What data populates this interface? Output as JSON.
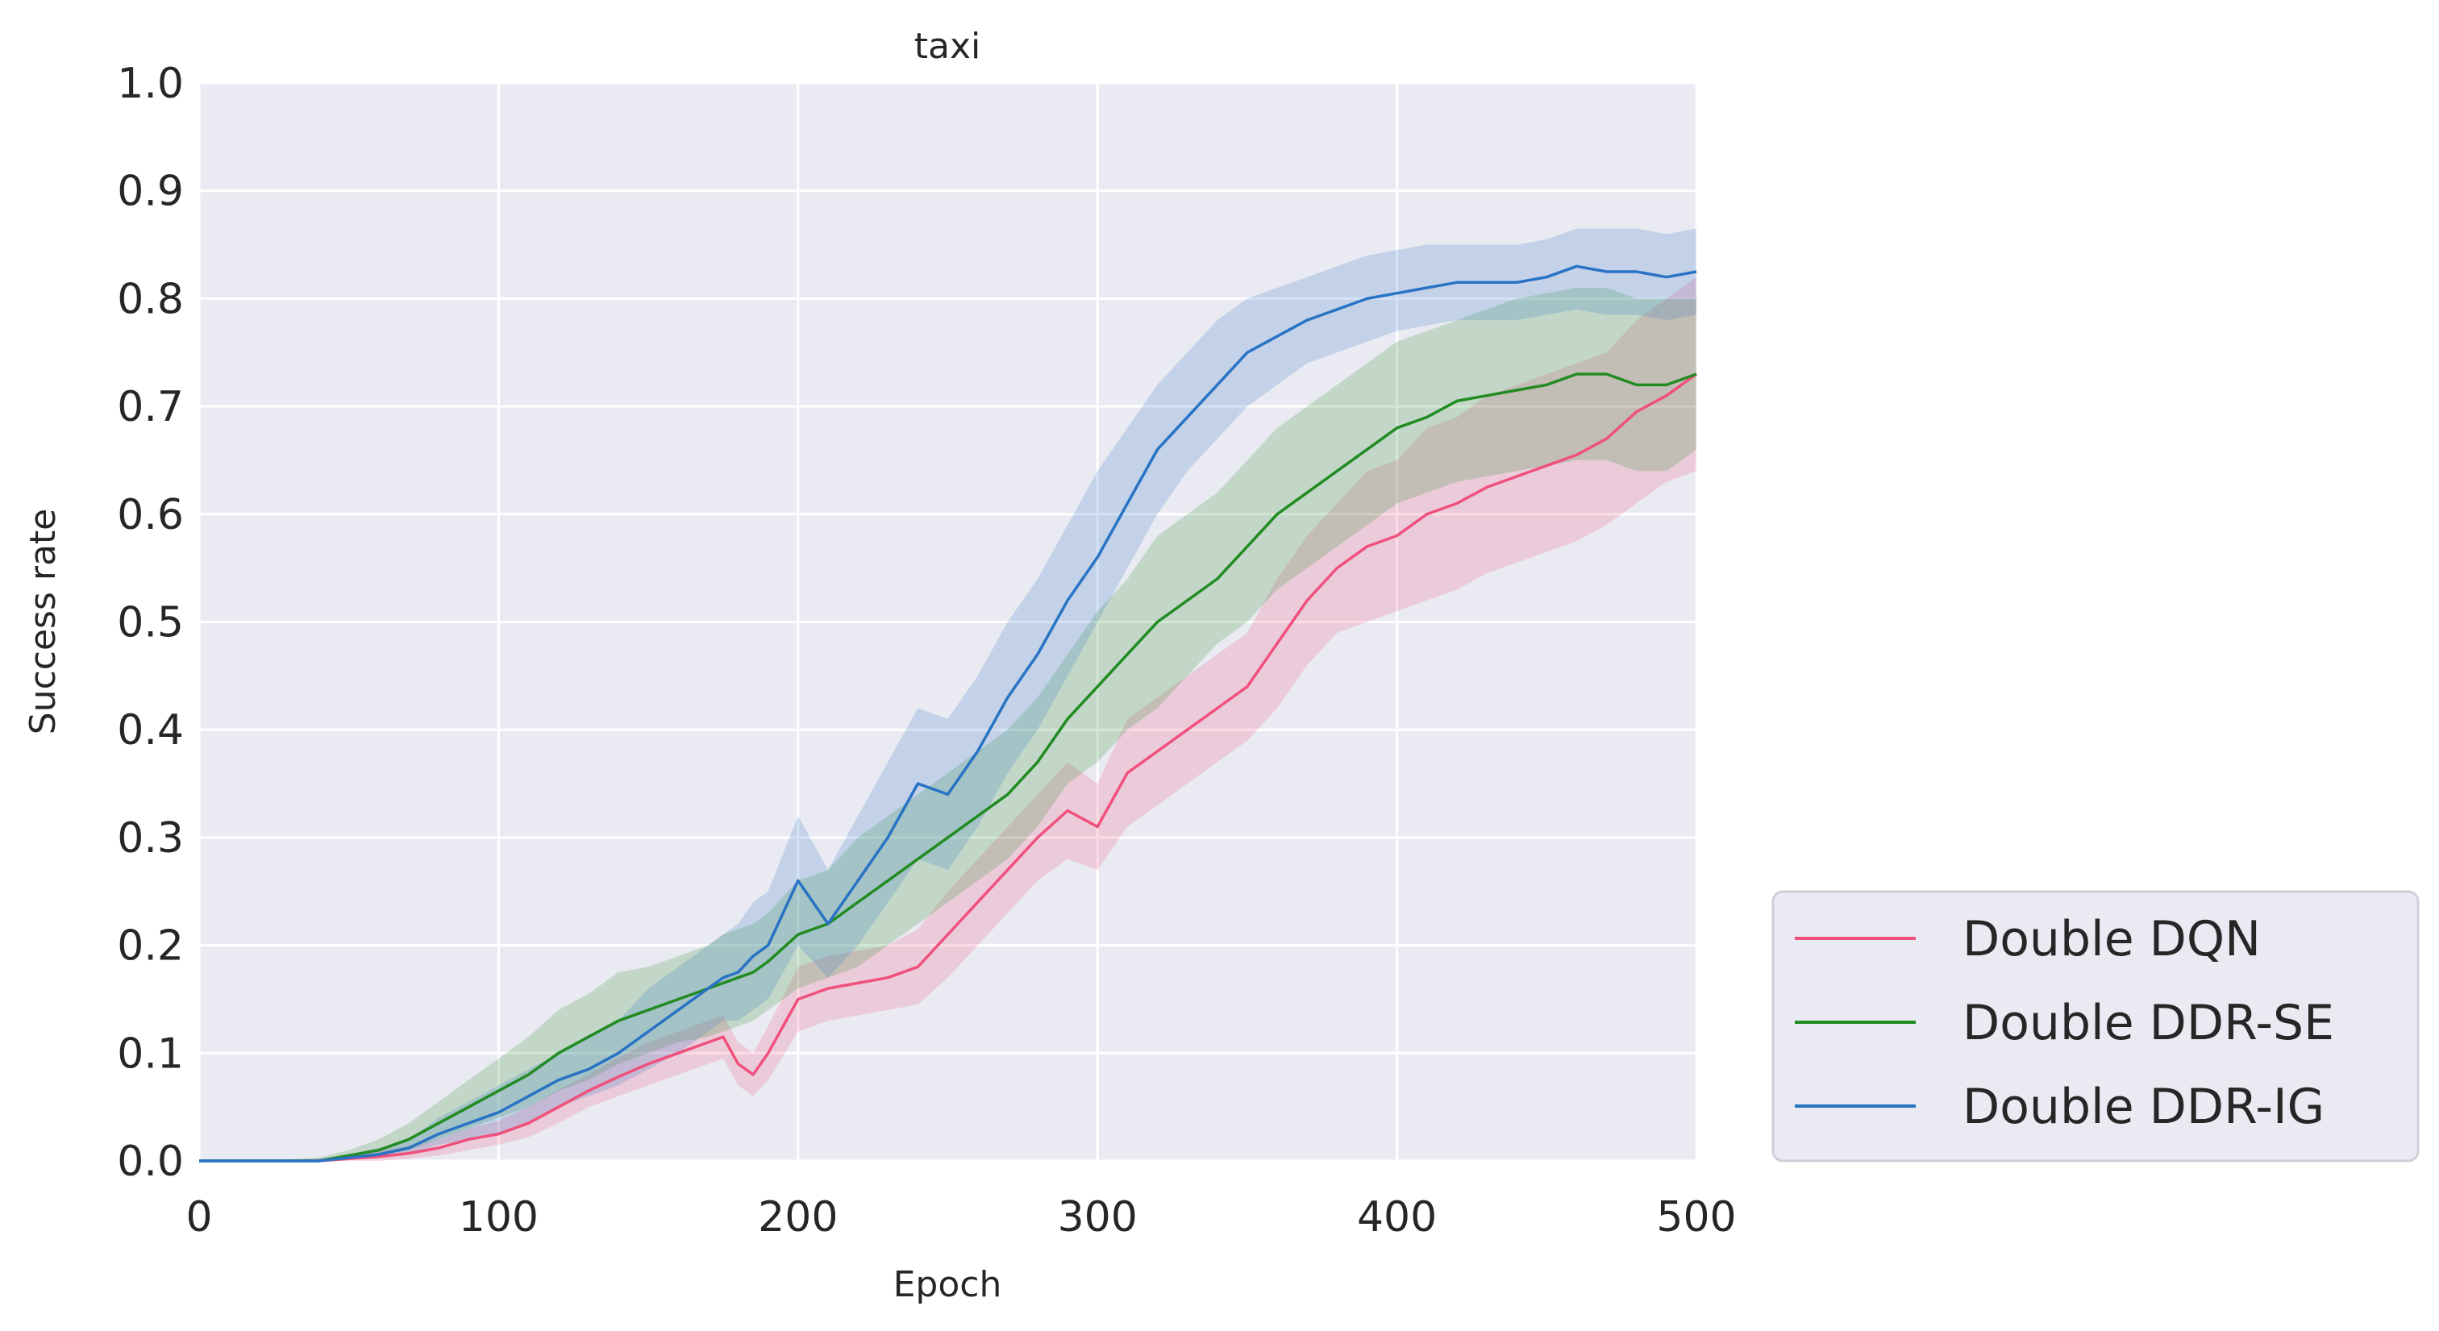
{
  "chart_data": {
    "type": "line",
    "title": "taxi",
    "xlabel": "Epoch",
    "ylabel": "Success rate",
    "xlim": [
      0,
      500
    ],
    "ylim": [
      0.0,
      1.0
    ],
    "xticks": [
      0,
      100,
      200,
      300,
      400,
      500
    ],
    "xtick_labels": [
      "0",
      "100",
      "200",
      "300",
      "400",
      "500"
    ],
    "yticks": [
      0.0,
      0.1,
      0.2,
      0.3,
      0.4,
      0.5,
      0.6,
      0.7,
      0.8,
      0.9,
      1.0
    ],
    "ytick_labels": [
      "0.0",
      "0.1",
      "0.2",
      "0.3",
      "0.4",
      "0.5",
      "0.6",
      "0.7",
      "0.8",
      "0.9",
      "1.0"
    ],
    "grid": true,
    "legend_position": "outside-lower-right",
    "x": [
      0,
      20,
      40,
      50,
      60,
      70,
      80,
      90,
      100,
      110,
      120,
      130,
      140,
      150,
      160,
      170,
      175,
      180,
      185,
      190,
      200,
      210,
      220,
      230,
      240,
      250,
      260,
      270,
      280,
      290,
      300,
      310,
      320,
      330,
      340,
      350,
      360,
      370,
      380,
      390,
      400,
      410,
      420,
      430,
      440,
      450,
      460,
      470,
      480,
      490,
      500
    ],
    "series": [
      {
        "name": "Double DQN",
        "color": "#f0507c",
        "values": [
          0.0,
          0.0,
          0.0,
          0.002,
          0.004,
          0.007,
          0.012,
          0.02,
          0.025,
          0.035,
          0.05,
          0.065,
          0.078,
          0.09,
          0.1,
          0.11,
          0.115,
          0.09,
          0.08,
          0.1,
          0.15,
          0.16,
          0.165,
          0.17,
          0.18,
          0.21,
          0.24,
          0.27,
          0.3,
          0.325,
          0.31,
          0.36,
          0.38,
          0.4,
          0.42,
          0.44,
          0.48,
          0.52,
          0.55,
          0.57,
          0.58,
          0.6,
          0.61,
          0.625,
          0.635,
          0.645,
          0.655,
          0.67,
          0.695,
          0.71,
          0.73
        ],
        "lower": [
          0.0,
          0.0,
          0.0,
          0.0,
          0.0,
          0.002,
          0.005,
          0.01,
          0.015,
          0.022,
          0.035,
          0.05,
          0.06,
          0.07,
          0.08,
          0.09,
          0.095,
          0.07,
          0.06,
          0.075,
          0.12,
          0.13,
          0.135,
          0.14,
          0.145,
          0.17,
          0.2,
          0.23,
          0.26,
          0.28,
          0.27,
          0.31,
          0.33,
          0.35,
          0.37,
          0.39,
          0.42,
          0.46,
          0.49,
          0.5,
          0.51,
          0.52,
          0.53,
          0.545,
          0.555,
          0.565,
          0.575,
          0.59,
          0.61,
          0.63,
          0.64
        ],
        "upper": [
          0.0,
          0.0,
          0.002,
          0.005,
          0.009,
          0.014,
          0.02,
          0.03,
          0.037,
          0.05,
          0.066,
          0.08,
          0.096,
          0.11,
          0.12,
          0.13,
          0.135,
          0.11,
          0.1,
          0.125,
          0.18,
          0.19,
          0.195,
          0.2,
          0.215,
          0.25,
          0.28,
          0.31,
          0.34,
          0.37,
          0.35,
          0.41,
          0.43,
          0.45,
          0.47,
          0.49,
          0.54,
          0.58,
          0.61,
          0.64,
          0.65,
          0.68,
          0.69,
          0.71,
          0.72,
          0.73,
          0.74,
          0.75,
          0.78,
          0.8,
          0.82
        ]
      },
      {
        "name": "Double DDR-SE",
        "color": "#228b22",
        "values": [
          0.0,
          0.0,
          0.0,
          0.005,
          0.01,
          0.02,
          0.035,
          0.05,
          0.065,
          0.08,
          0.1,
          0.115,
          0.13,
          0.14,
          0.15,
          0.16,
          0.165,
          0.17,
          0.175,
          0.185,
          0.21,
          0.22,
          0.24,
          0.26,
          0.28,
          0.3,
          0.32,
          0.34,
          0.37,
          0.41,
          0.44,
          0.47,
          0.5,
          0.52,
          0.54,
          0.57,
          0.6,
          0.62,
          0.64,
          0.66,
          0.68,
          0.69,
          0.705,
          0.71,
          0.715,
          0.72,
          0.73,
          0.73,
          0.72,
          0.72,
          0.73
        ],
        "lower": [
          0.0,
          0.0,
          0.0,
          0.002,
          0.005,
          0.01,
          0.02,
          0.03,
          0.04,
          0.05,
          0.065,
          0.075,
          0.09,
          0.1,
          0.11,
          0.115,
          0.12,
          0.125,
          0.13,
          0.14,
          0.16,
          0.17,
          0.18,
          0.2,
          0.22,
          0.24,
          0.26,
          0.28,
          0.31,
          0.35,
          0.37,
          0.4,
          0.42,
          0.45,
          0.48,
          0.5,
          0.53,
          0.55,
          0.57,
          0.59,
          0.61,
          0.62,
          0.63,
          0.635,
          0.64,
          0.645,
          0.65,
          0.65,
          0.64,
          0.64,
          0.66
        ],
        "upper": [
          0.0,
          0.0,
          0.003,
          0.01,
          0.02,
          0.035,
          0.055,
          0.075,
          0.095,
          0.115,
          0.14,
          0.155,
          0.175,
          0.18,
          0.19,
          0.2,
          0.21,
          0.215,
          0.22,
          0.23,
          0.26,
          0.27,
          0.3,
          0.32,
          0.34,
          0.36,
          0.38,
          0.4,
          0.43,
          0.47,
          0.51,
          0.54,
          0.58,
          0.6,
          0.62,
          0.65,
          0.68,
          0.7,
          0.72,
          0.74,
          0.76,
          0.77,
          0.78,
          0.79,
          0.8,
          0.805,
          0.81,
          0.81,
          0.8,
          0.8,
          0.8
        ]
      },
      {
        "name": "Double DDR-IG",
        "color": "#2873c3",
        "values": [
          0.0,
          0.0,
          0.0,
          0.003,
          0.006,
          0.012,
          0.025,
          0.035,
          0.045,
          0.06,
          0.075,
          0.085,
          0.1,
          0.12,
          0.14,
          0.16,
          0.17,
          0.175,
          0.19,
          0.2,
          0.26,
          0.22,
          0.26,
          0.3,
          0.35,
          0.34,
          0.38,
          0.43,
          0.47,
          0.52,
          0.56,
          0.61,
          0.66,
          0.69,
          0.72,
          0.75,
          0.765,
          0.78,
          0.79,
          0.8,
          0.805,
          0.81,
          0.815,
          0.815,
          0.815,
          0.82,
          0.83,
          0.825,
          0.825,
          0.82,
          0.825
        ],
        "lower": [
          0.0,
          0.0,
          0.0,
          0.001,
          0.003,
          0.006,
          0.015,
          0.02,
          0.025,
          0.035,
          0.05,
          0.06,
          0.07,
          0.085,
          0.1,
          0.12,
          0.13,
          0.13,
          0.14,
          0.15,
          0.2,
          0.17,
          0.2,
          0.24,
          0.28,
          0.27,
          0.31,
          0.36,
          0.4,
          0.45,
          0.5,
          0.55,
          0.6,
          0.64,
          0.67,
          0.7,
          0.72,
          0.74,
          0.75,
          0.76,
          0.77,
          0.775,
          0.78,
          0.78,
          0.78,
          0.785,
          0.79,
          0.785,
          0.785,
          0.78,
          0.785
        ],
        "upper": [
          0.0,
          0.0,
          0.002,
          0.006,
          0.012,
          0.02,
          0.04,
          0.055,
          0.07,
          0.085,
          0.1,
          0.115,
          0.13,
          0.16,
          0.18,
          0.2,
          0.21,
          0.22,
          0.24,
          0.25,
          0.32,
          0.27,
          0.32,
          0.37,
          0.42,
          0.41,
          0.45,
          0.5,
          0.54,
          0.59,
          0.64,
          0.68,
          0.72,
          0.75,
          0.78,
          0.8,
          0.81,
          0.82,
          0.83,
          0.84,
          0.845,
          0.85,
          0.85,
          0.85,
          0.85,
          0.855,
          0.865,
          0.865,
          0.865,
          0.86,
          0.865
        ]
      }
    ]
  }
}
